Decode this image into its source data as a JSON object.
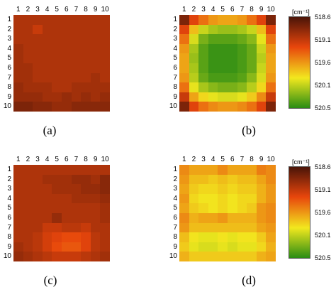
{
  "chart_data": [
    {
      "type": "heatmap",
      "panel": "a",
      "caption": "(a)",
      "x_ticks": [
        "1",
        "2",
        "3",
        "4",
        "5",
        "6",
        "7",
        "8",
        "9",
        "10"
      ],
      "y_ticks": [
        "1",
        "2",
        "3",
        "4",
        "5",
        "6",
        "7",
        "8",
        "9",
        "10"
      ],
      "colorbar": false,
      "values": [
        [
          519.0,
          519.0,
          519.0,
          519.0,
          519.0,
          519.0,
          519.0,
          519.0,
          519.0,
          519.0
        ],
        [
          519.0,
          519.0,
          519.1,
          519.0,
          519.0,
          519.0,
          519.0,
          519.0,
          519.0,
          519.0
        ],
        [
          519.0,
          519.0,
          519.0,
          519.0,
          519.0,
          519.0,
          519.0,
          519.0,
          519.0,
          519.0
        ],
        [
          518.95,
          519.0,
          519.0,
          519.0,
          519.0,
          519.0,
          519.0,
          519.0,
          519.0,
          519.0
        ],
        [
          518.95,
          519.0,
          519.0,
          519.0,
          519.0,
          519.0,
          519.0,
          519.0,
          519.0,
          519.0
        ],
        [
          518.95,
          518.95,
          519.0,
          519.0,
          519.0,
          519.0,
          519.0,
          519.0,
          519.0,
          519.0
        ],
        [
          518.95,
          518.95,
          519.0,
          519.0,
          519.0,
          519.0,
          519.0,
          519.0,
          518.95,
          519.0
        ],
        [
          518.9,
          518.95,
          518.95,
          518.95,
          519.0,
          519.0,
          518.95,
          518.95,
          518.95,
          518.95
        ],
        [
          518.9,
          518.9,
          518.9,
          518.95,
          518.95,
          518.9,
          518.95,
          518.9,
          518.95,
          518.9
        ],
        [
          518.8,
          518.8,
          518.85,
          518.85,
          518.9,
          518.9,
          518.85,
          518.85,
          518.85,
          518.85
        ]
      ]
    },
    {
      "type": "heatmap",
      "panel": "b",
      "caption": "(b)",
      "x_ticks": [
        "1",
        "2",
        "3",
        "4",
        "5",
        "6",
        "7",
        "8",
        "9",
        "10"
      ],
      "y_ticks": [
        "1",
        "2",
        "3",
        "4",
        "5",
        "6",
        "7",
        "8",
        "9",
        "10"
      ],
      "colorbar": true,
      "values": [
        [
          518.8,
          519.2,
          519.4,
          519.55,
          519.6,
          519.6,
          519.55,
          519.4,
          519.2,
          518.8
        ],
        [
          519.2,
          519.7,
          520.0,
          520.1,
          520.15,
          520.15,
          520.1,
          520.0,
          519.7,
          519.2
        ],
        [
          519.4,
          519.95,
          520.25,
          520.35,
          520.35,
          520.35,
          520.3,
          520.2,
          519.9,
          519.4
        ],
        [
          519.55,
          520.1,
          520.35,
          520.45,
          520.45,
          520.45,
          520.4,
          520.3,
          520.0,
          519.55
        ],
        [
          519.6,
          520.15,
          520.35,
          520.45,
          520.45,
          520.45,
          520.4,
          520.3,
          520.05,
          519.6
        ],
        [
          519.6,
          520.1,
          520.35,
          520.45,
          520.45,
          520.45,
          520.4,
          520.3,
          520.0,
          519.6
        ],
        [
          519.55,
          520.05,
          520.3,
          520.4,
          520.4,
          520.4,
          520.35,
          520.2,
          519.95,
          519.55
        ],
        [
          519.4,
          519.9,
          520.1,
          520.2,
          520.25,
          520.25,
          520.2,
          520.05,
          519.8,
          519.4
        ],
        [
          519.1,
          519.6,
          519.8,
          519.9,
          519.95,
          519.95,
          519.9,
          519.75,
          519.5,
          519.1
        ],
        [
          518.8,
          519.2,
          519.4,
          519.5,
          519.55,
          519.55,
          519.5,
          519.4,
          519.2,
          518.8
        ]
      ]
    },
    {
      "type": "heatmap",
      "panel": "c",
      "caption": "(c)",
      "x_ticks": [
        "1",
        "2",
        "3",
        "4",
        "5",
        "6",
        "7",
        "8",
        "9",
        "10"
      ],
      "y_ticks": [
        "1",
        "2",
        "3",
        "4",
        "5",
        "6",
        "7",
        "8",
        "9",
        "10"
      ],
      "colorbar": false,
      "values": [
        [
          519.0,
          519.0,
          519.0,
          519.0,
          519.0,
          519.0,
          519.0,
          519.0,
          519.0,
          519.0
        ],
        [
          519.0,
          519.0,
          519.0,
          518.95,
          518.95,
          518.95,
          518.9,
          518.9,
          518.95,
          518.85
        ],
        [
          519.0,
          519.0,
          519.0,
          519.0,
          518.95,
          518.95,
          518.95,
          518.9,
          518.9,
          518.85
        ],
        [
          519.0,
          519.0,
          519.0,
          519.0,
          519.0,
          519.0,
          518.95,
          518.95,
          518.95,
          518.9
        ],
        [
          519.0,
          519.0,
          519.0,
          519.0,
          519.0,
          519.0,
          519.0,
          519.0,
          519.0,
          518.95
        ],
        [
          519.0,
          519.0,
          519.0,
          519.0,
          518.9,
          519.0,
          519.0,
          519.0,
          519.0,
          518.95
        ],
        [
          519.0,
          519.0,
          519.0,
          519.1,
          519.1,
          519.05,
          519.05,
          519.1,
          519.0,
          519.0
        ],
        [
          519.0,
          519.0,
          519.05,
          519.15,
          519.2,
          519.25,
          519.25,
          519.2,
          519.05,
          519.0
        ],
        [
          518.95,
          519.0,
          519.05,
          519.15,
          519.25,
          519.3,
          519.3,
          519.2,
          519.05,
          519.0
        ],
        [
          518.9,
          518.95,
          519.0,
          519.05,
          519.1,
          519.1,
          519.1,
          519.05,
          519.0,
          518.95
        ]
      ]
    },
    {
      "type": "heatmap",
      "panel": "d",
      "caption": "(d)",
      "x_ticks": [
        "1",
        "2",
        "3",
        "4",
        "5",
        "6",
        "7",
        "8",
        "9",
        "10"
      ],
      "y_ticks": [
        "1",
        "2",
        "3",
        "4",
        "5",
        "6",
        "7",
        "8",
        "9",
        "10"
      ],
      "colorbar": true,
      "values": [
        [
          519.5,
          519.6,
          519.6,
          519.6,
          519.5,
          519.6,
          519.6,
          519.6,
          519.45,
          519.5
        ],
        [
          519.55,
          519.7,
          519.7,
          519.75,
          519.7,
          519.75,
          519.7,
          519.7,
          519.6,
          519.5
        ],
        [
          519.6,
          519.75,
          519.8,
          519.8,
          519.75,
          519.8,
          519.75,
          519.75,
          519.65,
          519.55
        ],
        [
          519.55,
          519.8,
          519.85,
          519.85,
          519.8,
          519.85,
          519.8,
          519.8,
          519.65,
          519.55
        ],
        [
          519.6,
          519.75,
          519.8,
          519.85,
          519.8,
          519.85,
          519.8,
          519.75,
          519.55,
          519.5
        ],
        [
          519.5,
          519.65,
          519.6,
          519.6,
          519.55,
          519.65,
          519.65,
          519.65,
          519.55,
          519.5
        ],
        [
          519.55,
          519.7,
          519.7,
          519.7,
          519.7,
          519.7,
          519.7,
          519.7,
          519.6,
          519.55
        ],
        [
          519.7,
          519.85,
          519.9,
          519.9,
          519.85,
          519.9,
          519.85,
          519.85,
          519.75,
          519.6
        ],
        [
          519.75,
          519.9,
          519.95,
          519.95,
          519.9,
          519.95,
          519.9,
          519.9,
          519.8,
          519.65
        ],
        [
          519.65,
          519.75,
          519.75,
          519.75,
          519.75,
          519.75,
          519.75,
          519.75,
          519.65,
          519.6
        ]
      ]
    }
  ],
  "colorbar": {
    "unit": "[cm⁻¹]",
    "ticks": [
      "518.6",
      "519.1",
      "519.6",
      "520.1",
      "520.5"
    ],
    "min": 518.6,
    "max": 520.5,
    "colors": [
      "#4a1408",
      "#e8460c",
      "#f2e81e",
      "#2a8c14"
    ]
  }
}
